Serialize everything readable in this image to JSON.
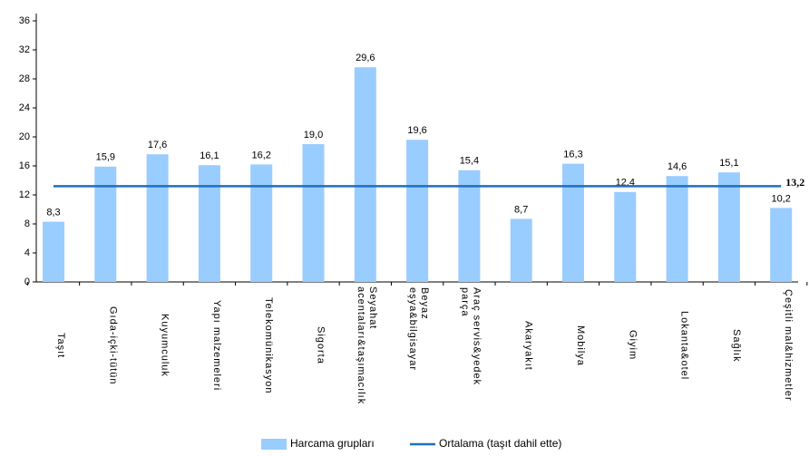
{
  "chart_data": {
    "type": "bar",
    "categories": [
      "Taşıt",
      "Gıda-içki-tütün",
      "Kuyumculuk",
      "Yapı malzemeleri",
      "Telekomünikasyon",
      "Sigorta",
      "Seyahat acentaları&taşımacılık",
      "Beyaz eşya&bilgisayar",
      "Araç servis&yedek parça",
      "Akaryakıt",
      "Mobilya",
      "Giyim",
      "Lokanta&otel",
      "Sağlık",
      "Çeşitli mal&hizmetler"
    ],
    "series": [
      {
        "name": "Harcama grupları",
        "color": "#99ccff",
        "values": [
          8.3,
          15.9,
          17.6,
          16.1,
          16.2,
          19.0,
          29.6,
          19.6,
          15.4,
          8.7,
          16.3,
          12.4,
          14.6,
          15.1,
          10.2
        ],
        "value_labels": [
          "8,3",
          "15,9",
          "17,6",
          "16,1",
          "16,2",
          "19,0",
          "29,6",
          "19,6",
          "15,4",
          "8,7",
          "16,3",
          "12,4",
          "14,6",
          "15,1",
          "10,2"
        ]
      },
      {
        "name": "Ortalama (taşıt dahil ette)",
        "color": "#1f6fbf",
        "value": 13.2,
        "value_label": "13,2"
      }
    ],
    "ylim": [
      0,
      36
    ],
    "yticks": [
      0,
      4,
      8,
      12,
      16,
      20,
      24,
      28,
      32,
      36
    ]
  }
}
